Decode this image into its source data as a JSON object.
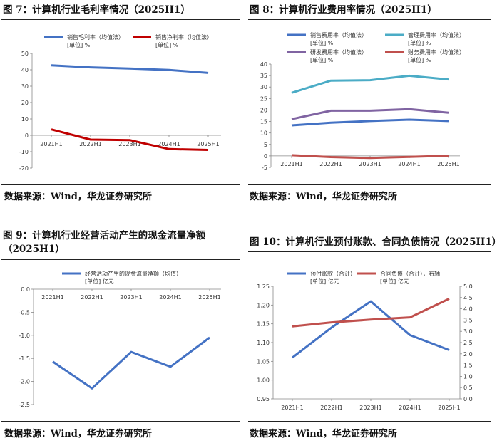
{
  "charts": {
    "c1": {
      "title": "图 7：计算机行业毛利率情况（2025H1）",
      "source": "数据来源：Wind，华龙证券研究所",
      "chart_data": {
        "type": "line",
        "categories": [
          "2021H1",
          "2022H1",
          "2023H1",
          "2024H1",
          "2025H1"
        ],
        "ylim": [
          -20,
          50
        ],
        "ystep": 10,
        "series": [
          {
            "name": "销售毛利率（均值法）",
            "unit": "[单位] %",
            "color": "#4472c4",
            "values": [
              42.7,
              41.5,
              40.8,
              39.9,
              38.1
            ]
          },
          {
            "name": "销售净利率（均值法）",
            "unit": "[单位] %",
            "color": "#c00000",
            "values": [
              3.6,
              -2.6,
              -2.9,
              -8.4,
              -8.9
            ]
          }
        ]
      }
    },
    "c2": {
      "title": "图 8：计算机行业费用率情况（2025H1）",
      "source": "数据来源：Wind，华龙证券研究所",
      "chart_data": {
        "type": "line",
        "categories": [
          "2021H1",
          "2022H1",
          "2023H1",
          "2024H1",
          "2025H1"
        ],
        "ylim": [
          -5,
          40
        ],
        "ystep": 5,
        "series": [
          {
            "name": "销售费用率（均值法）",
            "unit": "[单位] %",
            "color": "#4472c4",
            "values": [
              13.3,
              14.5,
              15.2,
              15.8,
              15.2
            ]
          },
          {
            "name": "管理费用率（均值法）",
            "unit": "[单位] %",
            "color": "#4bacc6",
            "values": [
              27.5,
              32.8,
              33.0,
              34.9,
              33.3
            ]
          },
          {
            "name": "研发费用率（均值法）",
            "unit": "[单位] %",
            "color": "#8064a2",
            "values": [
              16.0,
              19.7,
              19.7,
              20.4,
              18.8
            ]
          },
          {
            "name": "财务费用率（均值法）",
            "unit": "[单位] %",
            "color": "#c0504d",
            "values": [
              0.3,
              -0.5,
              -0.9,
              -0.4,
              0.1
            ]
          }
        ]
      }
    },
    "c3": {
      "title1": "图 9：计算机行业经营活动产生的现金流量净额",
      "title2": "（2025H1）",
      "source": "数据来源：Wind，华龙证券研究所",
      "chart_data": {
        "type": "line",
        "categories": [
          "2021H1",
          "2022H1",
          "2023H1",
          "2024H1",
          "2025H1"
        ],
        "ylim": [
          -2.5,
          0.0
        ],
        "ystep": 0.5,
        "series": [
          {
            "name": "经营活动产生的现金流量净额（均值）",
            "unit": "[单位] 亿元",
            "color": "#4472c4",
            "values": [
              -1.57,
              -2.15,
              -1.36,
              -1.68,
              -1.05
            ]
          }
        ]
      }
    },
    "c4": {
      "title": "图 10：计算机行业预付账款、合同负债情况（2025H1）",
      "source": "数据来源：Wind，华龙证券研究所",
      "chart_data": {
        "type": "line",
        "categories": [
          "2021H1",
          "2022H1",
          "2023H1",
          "2024H1",
          "2025H1"
        ],
        "ylim": [
          0.95,
          1.25
        ],
        "ystep": 0.05,
        "y2lim": [
          0.0,
          5.0
        ],
        "y2step": 0.5,
        "series": [
          {
            "name": "预付账款（合计）",
            "unit": "[单位] 亿元",
            "color": "#4472c4",
            "axis": "left",
            "values": [
              1.06,
              1.14,
              1.21,
              1.12,
              1.08
            ]
          },
          {
            "name": "合同负债（合计），右轴",
            "unit": "[单位] 亿元",
            "color": "#c0504d",
            "axis": "right",
            "values": [
              3.22,
              3.4,
              3.52,
              3.62,
              4.45
            ]
          }
        ]
      }
    }
  }
}
